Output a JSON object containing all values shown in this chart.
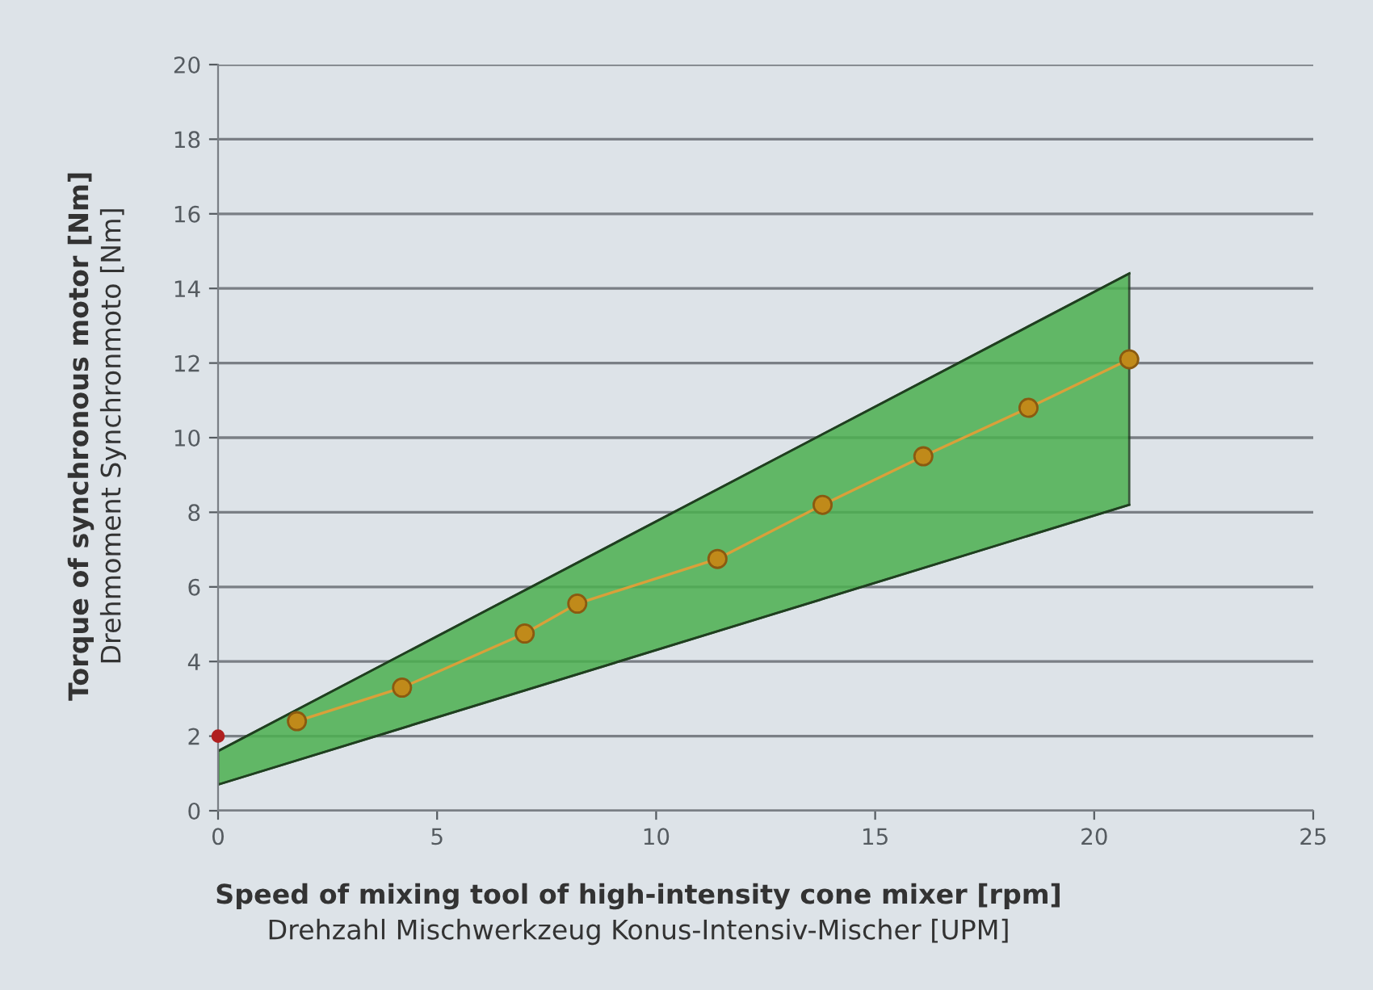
{
  "chart_data": {
    "type": "line",
    "xlabel": "Speed of mixing tool of high-intensity cone mixer [rpm]\nDrehzahl Mischwerkzeug Konus-Intensiv-Mischer [UPM]",
    "ylabel": "Torque of synchronous motor [Nm]\nDrehmoment Synchronmoto [Nm]",
    "xlim": [
      0,
      25
    ],
    "xticks": [
      0,
      5,
      10,
      15,
      20,
      25
    ],
    "ylim": [
      0,
      20
    ],
    "yticks": [
      0,
      2,
      4,
      6,
      8,
      10,
      12,
      14,
      16,
      18,
      20
    ],
    "grid": "y",
    "legend": false,
    "series": [
      {
        "color": "#1f3f1f",
        "x": [
          0,
          20.8
        ],
        "values": [
          1.6,
          14.4
        ]
      },
      {
        "color": "#1f3f1f",
        "x": [
          0,
          20.8
        ],
        "values": [
          0.7,
          8.2
        ]
      },
      {
        "type": "line",
        "color": "#d9a03a",
        "marker": "circle",
        "x": [
          1.8,
          4.2,
          7.0,
          8.2,
          11.4,
          13.8,
          16.1,
          18.5,
          20.8
        ],
        "values": [
          2.4,
          3.3,
          4.75,
          5.55,
          6.75,
          8.2,
          9.5,
          10.8,
          12.1
        ]
      },
      {
        "type": "scatter",
        "color": "#b02020",
        "x": [
          0
        ],
        "values": [
          2.0
        ]
      }
    ]
  }
}
